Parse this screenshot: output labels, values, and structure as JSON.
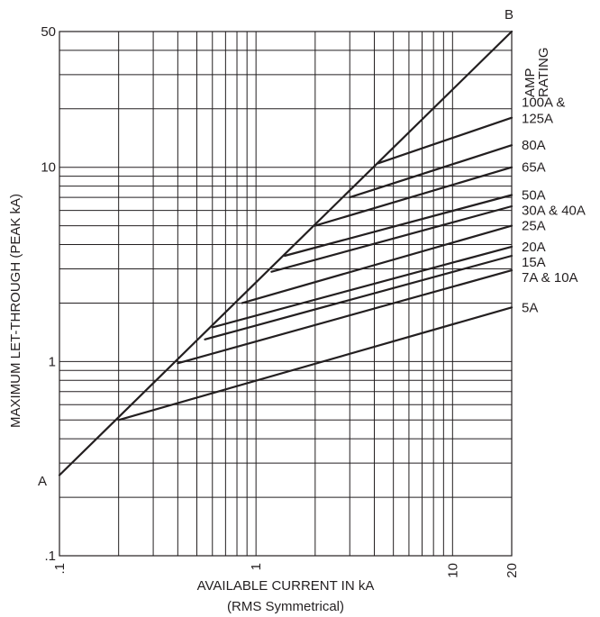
{
  "chart_data": {
    "type": "line",
    "x_scale": "log",
    "y_scale": "log",
    "xlim": [
      0.1,
      20
    ],
    "ylim": [
      0.1,
      50
    ],
    "grid": true,
    "xlabel": "AVAILABLE CURRENT IN kA",
    "xlabel_sub": "(RMS Symmetrical)",
    "ylabel": "MAXIMUM LET-THROUGH (PEAK kA)",
    "x_ticks": [
      {
        "value": 0.1,
        "label": ".1"
      },
      {
        "value": 1,
        "label": "1"
      },
      {
        "value": 10,
        "label": "10"
      },
      {
        "value": 20,
        "label": "20"
      }
    ],
    "y_ticks": [
      {
        "value": 0.1,
        "label": ".1"
      },
      {
        "value": 1,
        "label": "1"
      },
      {
        "value": 10,
        "label": "10"
      },
      {
        "value": 50,
        "label": "50"
      }
    ],
    "x_gridlines": [
      0.1,
      0.2,
      0.3,
      0.4,
      0.5,
      0.6,
      0.7,
      0.8,
      0.9,
      1,
      2,
      3,
      4,
      5,
      6,
      7,
      8,
      9,
      10,
      20
    ],
    "y_gridlines": [
      0.1,
      0.2,
      0.3,
      0.4,
      0.5,
      0.6,
      0.7,
      0.8,
      0.9,
      1,
      2,
      3,
      4,
      5,
      6,
      7,
      8,
      9,
      10,
      20,
      30,
      40,
      50
    ],
    "reference_line": {
      "start_label": "A",
      "end_label": "B",
      "points": [
        [
          0.1,
          0.26
        ],
        [
          20,
          50
        ]
      ]
    },
    "legend_title": [
      "AMP",
      "RATING"
    ],
    "series": [
      {
        "name": "100A & 125A",
        "points": [
          [
            4.2,
            10.5
          ],
          [
            20,
            18
          ]
        ]
      },
      {
        "name": "80A",
        "points": [
          [
            3,
            7
          ],
          [
            20,
            13
          ]
        ]
      },
      {
        "name": "65A",
        "points": [
          [
            2,
            5
          ],
          [
            20,
            10
          ]
        ]
      },
      {
        "name": "50A",
        "points": [
          [
            1.4,
            3.5
          ],
          [
            20,
            7.2
          ]
        ]
      },
      {
        "name": "30A & 40A",
        "points": [
          [
            1.2,
            2.9
          ],
          [
            20,
            6.3
          ]
        ]
      },
      {
        "name": "25A",
        "points": [
          [
            0.85,
            2
          ],
          [
            20,
            5
          ]
        ]
      },
      {
        "name": "20A",
        "points": [
          [
            0.6,
            1.5
          ],
          [
            20,
            3.9
          ]
        ]
      },
      {
        "name": "15A",
        "points": [
          [
            0.55,
            1.3
          ],
          [
            20,
            3.5
          ]
        ]
      },
      {
        "name": "7A & 10A",
        "points": [
          [
            0.4,
            0.98
          ],
          [
            20,
            2.95
          ]
        ]
      },
      {
        "name": "5A",
        "points": [
          [
            0.2,
            0.5
          ],
          [
            20,
            1.9
          ]
        ]
      }
    ]
  }
}
